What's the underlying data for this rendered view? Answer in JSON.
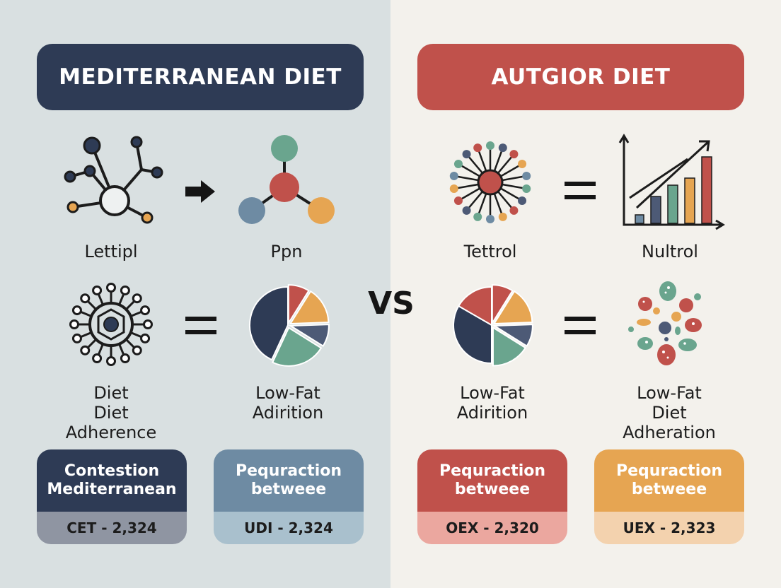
{
  "colors": {
    "navy": "#2e3b55",
    "red": "#c0514b",
    "teal": "#6aa58e",
    "orange": "#e6a552",
    "slate": "#4d5a76",
    "blue_grey": "#6e8ba3",
    "left_bg": "#d9e0e1",
    "right_bg": "#f3f1ec"
  },
  "left": {
    "title": "MEDITERRANEAN DIET",
    "row1": {
      "icon_a": "molecule-network-icon",
      "label_a": "Lettipl",
      "operator": "arrow-right-icon",
      "icon_b": "molecule-icon",
      "label_b": "Ppn"
    },
    "row2": {
      "icon_a": "virus-network-icon",
      "label_a_lines": [
        "Diet",
        "Diet",
        "Adherence"
      ],
      "operator": "equals-icon",
      "icon_b": "pie-chart-icon",
      "label_b_lines": [
        "Low-Fat",
        "Adirition"
      ]
    },
    "cards": [
      {
        "lines": [
          "Contestion",
          "Mediterranean"
        ],
        "value": "CET - 2,324"
      },
      {
        "lines": [
          "Pequraction",
          "betweee"
        ],
        "value": "UDI - 2,324"
      }
    ]
  },
  "vs_label": "VS",
  "right": {
    "title": "AUTGIOR DIET",
    "row1": {
      "icon_a": "radial-network-icon",
      "label_a": "Tettrol",
      "operator": "equals-icon",
      "icon_b": "bar-chart-icon",
      "label_b": "Nultrol"
    },
    "row2": {
      "icon_a": "pie-chart-icon",
      "label_a_lines": [
        "Low-Fat",
        "Adirition"
      ],
      "operator": "equals-icon",
      "icon_b": "particles-icon",
      "label_b_lines": [
        "Low-Fat",
        "Diet",
        "Adheration"
      ]
    },
    "cards": [
      {
        "lines": [
          "Pequraction",
          "betweee"
        ],
        "value": "OEX - 2,320"
      },
      {
        "lines": [
          "Pequraction",
          "betweee"
        ],
        "value": "UEX - 2,323"
      }
    ]
  }
}
